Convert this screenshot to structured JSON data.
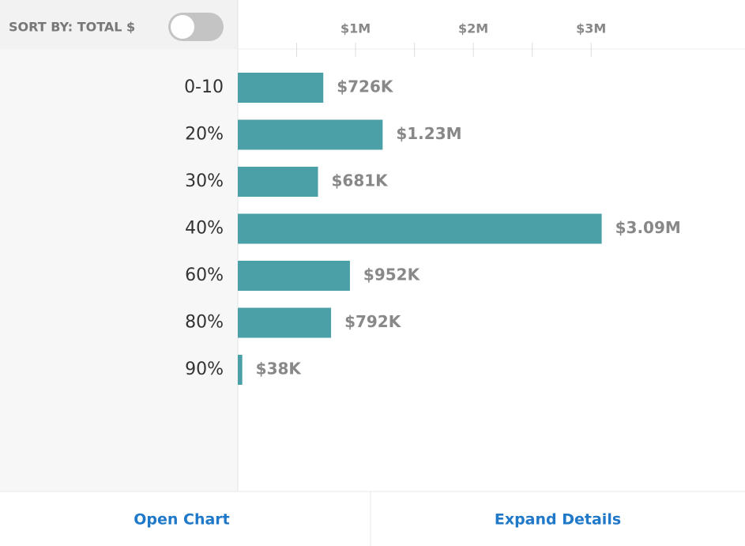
{
  "sort_label": "SORT BY: TOTAL $",
  "sort_toggle_on": false,
  "chart_data": {
    "type": "bar",
    "orientation": "horizontal",
    "categories": [
      "0-10",
      "20%",
      "30%",
      "40%",
      "60%",
      "80%",
      "90%"
    ],
    "values": [
      726000,
      1230000,
      681000,
      3090000,
      952000,
      792000,
      38000
    ],
    "value_labels": [
      "$726K",
      "$1.23M",
      "$681K",
      "$3.09M",
      "$952K",
      "$792K",
      "$38K"
    ],
    "color": "#4aa0a6",
    "xlim": [
      0,
      4300000
    ],
    "xticks": [
      {
        "value": 1000000,
        "label": "$1M"
      },
      {
        "value": 2000000,
        "label": "$2M"
      },
      {
        "value": 3000000,
        "label": "$3M"
      }
    ],
    "xminorticks": [
      500000,
      1500000,
      2500000
    ]
  },
  "buttons": [
    "Open Chart",
    "Expand Details"
  ]
}
